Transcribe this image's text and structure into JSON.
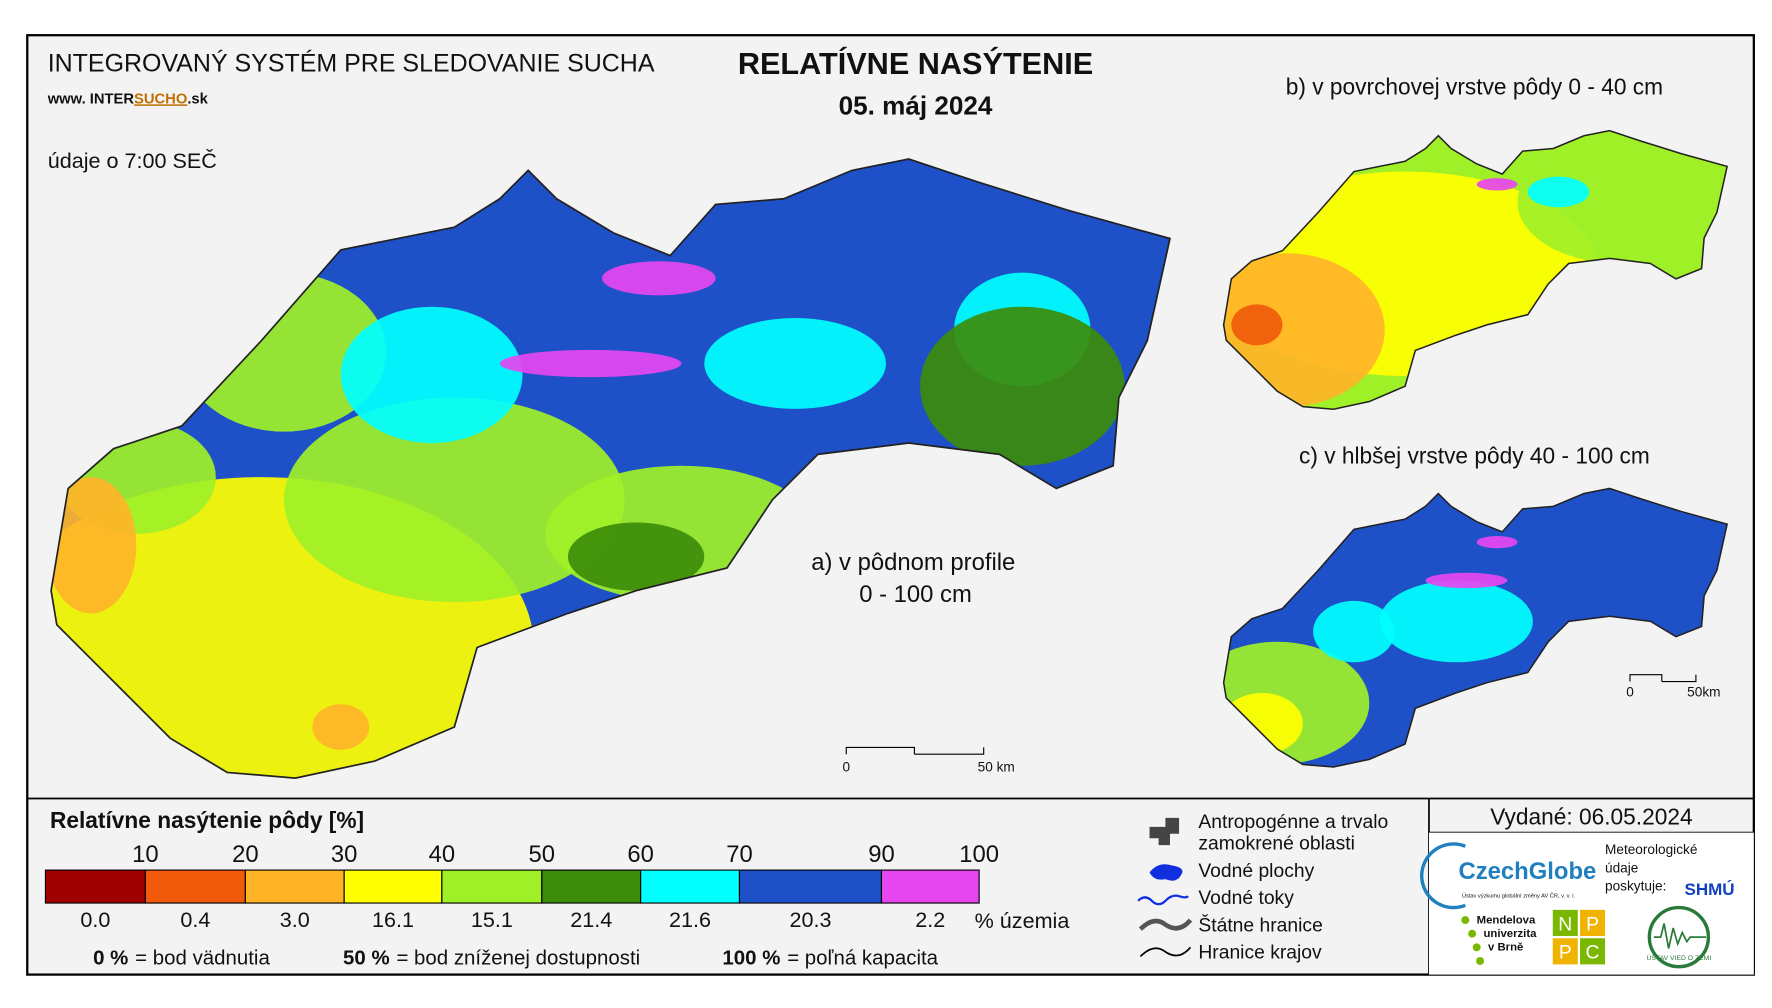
{
  "header": {
    "system": "INTEGROVANÝ SYSTÉM PRE SLEDOVANIE SUCHA",
    "web": [
      "www. INTER",
      "SUCHO",
      ".sk"
    ],
    "time_note": "údaje o 7:00 SEČ",
    "title": "RELATÍVNE NASÝTENIE",
    "date": "05. máj 2024"
  },
  "maps": {
    "a": {
      "label": [
        "a) v pôdnom profile",
        "0 - 100 cm"
      ],
      "scale": [
        "0",
        "50 km"
      ]
    },
    "b": {
      "label": "b) v povrchovej vrstve pôdy 0 - 40 cm"
    },
    "c": {
      "label": "c) v hlbšej vrstve pôdy 40 - 100 cm",
      "scale": [
        "0",
        "50km"
      ]
    }
  },
  "legend": {
    "title": "Relatívne nasýtenie pôdy [%]",
    "breaks": [
      10,
      20,
      30,
      40,
      50,
      60,
      70,
      90,
      100
    ],
    "classes": [
      {
        "color": "#a00000",
        "area": "0.0"
      },
      {
        "color": "#f05a0a",
        "area": "0.4"
      },
      {
        "color": "#ffb428",
        "area": "3.0"
      },
      {
        "color": "#ffff00",
        "area": "16.1"
      },
      {
        "color": "#a0f028",
        "area": "15.1"
      },
      {
        "color": "#3c8c0a",
        "area": "21.4"
      },
      {
        "color": "#00ffff",
        "area": "21.6"
      },
      {
        "color": "#1e50c8",
        "area": "20.3"
      },
      {
        "color": "#e646f0",
        "area": "2.2"
      }
    ],
    "area_unit": "% územia",
    "notes": [
      [
        "0 %",
        "= bod vädnutia"
      ],
      [
        "50 %",
        "= bod zníženej dostupnosti"
      ],
      [
        "100 %",
        "= poľná kapacita"
      ]
    ]
  },
  "symbols": [
    [
      "Antropogénne a trvalo",
      "zamokrené oblasti"
    ],
    [
      "Vodné plochy"
    ],
    [
      "Vodné toky"
    ],
    [
      "Štátne hranice"
    ],
    [
      "Hranice krajov"
    ]
  ],
  "issued": "Vydané: 06.05.2024",
  "logos": {
    "czechglobe": "CzechGlobe",
    "czechglobe_sub": "Ústav výzkumu globální změny AV ČR, v. v. i.",
    "shmu_note": [
      "Meteorologické",
      "údaje",
      "poskytuje:"
    ],
    "shmu": "SHMÚ",
    "mendel": [
      "Mendelova",
      "univerzita",
      "v Brně"
    ],
    "nppc": [
      "N",
      "P",
      "P",
      "C"
    ],
    "uvz": "ÚSTAV VIED O ZEMI"
  }
}
